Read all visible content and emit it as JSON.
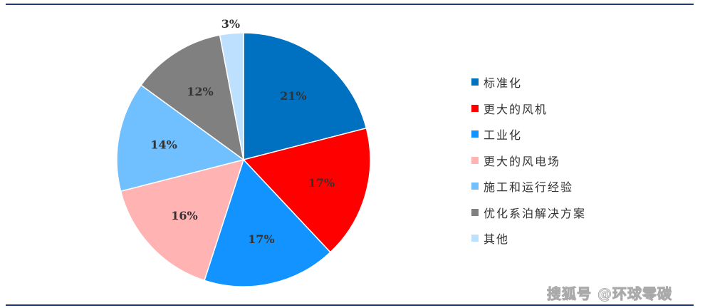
{
  "chart_data": {
    "type": "pie",
    "start": "top",
    "direction": "clockwise",
    "categories": [
      "标准化",
      "更大的风机",
      "工业化",
      "更大的风电场",
      "施工和运行经验",
      "优化系泊解决方案",
      "其他"
    ],
    "values": [
      21,
      17,
      17,
      16,
      14,
      12,
      3
    ],
    "labels": [
      "21%",
      "17%",
      "17%",
      "16%",
      "14%",
      "12%",
      "3%"
    ],
    "colors": [
      "#0070c0",
      "#ff0000",
      "#1293ff",
      "#ffb3b3",
      "#70bfff",
      "#808080",
      "#bde0ff"
    ],
    "legend_position": "right"
  },
  "watermark": "搜狐号 @环球零碳",
  "rule_color": "#1f3a7a"
}
